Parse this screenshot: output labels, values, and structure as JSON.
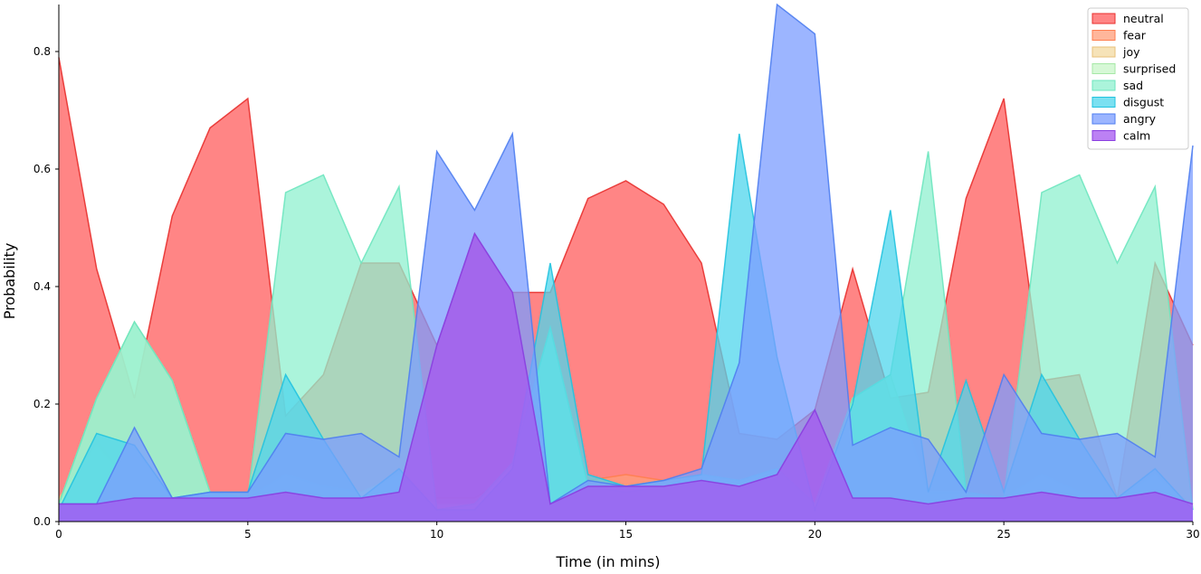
{
  "chart_data": {
    "type": "area",
    "title": "",
    "xlabel": "Time (in mins)",
    "ylabel": "Probability",
    "xlim": [
      0,
      30
    ],
    "ylim": [
      0,
      0.88
    ],
    "xticks": [
      0,
      5,
      10,
      15,
      20,
      25,
      30
    ],
    "yticks": [
      0.0,
      0.2,
      0.4,
      0.6,
      0.8
    ],
    "xtick_labels": [
      "0",
      "5",
      "10",
      "15",
      "20",
      "25",
      "30"
    ],
    "ytick_labels": [
      "0.0",
      "0.2",
      "0.4",
      "0.6",
      "0.8"
    ],
    "grid": false,
    "legend_position": "top-right",
    "x": [
      0,
      1,
      2,
      3,
      4,
      5,
      6,
      7,
      8,
      9,
      10,
      11,
      12,
      13,
      14,
      15,
      16,
      17,
      18,
      19,
      20,
      21,
      22,
      23,
      24,
      25,
      26,
      27,
      28,
      29,
      30
    ],
    "series": [
      {
        "name": "neutral",
        "color": "#ff5c5c",
        "line": "#e8302e",
        "values": [
          0.79,
          0.43,
          0.21,
          0.52,
          0.67,
          0.72,
          0.18,
          0.25,
          0.44,
          0.44,
          0.3,
          0.49,
          0.39,
          0.39,
          0.55,
          0.58,
          0.54,
          0.44,
          0.15,
          0.14,
          0.19,
          0.43,
          0.21,
          0.22,
          0.55,
          0.72,
          0.24,
          0.25,
          0.04,
          0.44,
          0.3
        ]
      },
      {
        "name": "fear",
        "color": "#ff9e7a",
        "line": "#ff7f50",
        "values": [
          0.03,
          0.14,
          0.05,
          0.04,
          0.05,
          0.05,
          0.07,
          0.05,
          0.04,
          0.07,
          0.04,
          0.04,
          0.08,
          0.03,
          0.07,
          0.08,
          0.07,
          0.08,
          0.07,
          0.08,
          0.03,
          0.13,
          0.05,
          0.05,
          0.04,
          0.04,
          0.07,
          0.05,
          0.04,
          0.07,
          0.03
        ]
      },
      {
        "name": "joy",
        "color": "#f3d9a0",
        "line": "#e8c07a",
        "values": [
          0.04,
          0.13,
          0.05,
          0.05,
          0.05,
          0.05,
          0.06,
          0.05,
          0.04,
          0.06,
          0.03,
          0.03,
          0.08,
          0.03,
          0.06,
          0.06,
          0.07,
          0.08,
          0.07,
          0.08,
          0.03,
          0.12,
          0.05,
          0.05,
          0.05,
          0.04,
          0.06,
          0.05,
          0.04,
          0.06,
          0.03
        ]
      },
      {
        "name": "surprised",
        "color": "#c8f5c8",
        "line": "#a6e8a6",
        "values": [
          0.03,
          0.21,
          0.34,
          0.24,
          0.05,
          0.04,
          0.08,
          0.06,
          0.05,
          0.08,
          0.02,
          0.03,
          0.1,
          0.33,
          0.06,
          0.05,
          0.06,
          0.08,
          0.07,
          0.09,
          0.03,
          0.21,
          0.25,
          0.05,
          0.05,
          0.04,
          0.08,
          0.05,
          0.04,
          0.08,
          0.02
        ]
      },
      {
        "name": "sad",
        "color": "#8ff0cf",
        "line": "#6ee6bf",
        "values": [
          0.03,
          0.21,
          0.34,
          0.24,
          0.05,
          0.04,
          0.56,
          0.59,
          0.44,
          0.57,
          0.02,
          0.03,
          0.1,
          0.33,
          0.06,
          0.05,
          0.06,
          0.08,
          0.07,
          0.09,
          0.03,
          0.21,
          0.25,
          0.63,
          0.05,
          0.04,
          0.56,
          0.59,
          0.44,
          0.57,
          0.02
        ]
      },
      {
        "name": "disgust",
        "color": "#4fd6ec",
        "line": "#22c3df",
        "values": [
          0.02,
          0.15,
          0.13,
          0.04,
          0.05,
          0.05,
          0.25,
          0.14,
          0.04,
          0.09,
          0.02,
          0.02,
          0.09,
          0.44,
          0.08,
          0.06,
          0.07,
          0.08,
          0.66,
          0.28,
          0.02,
          0.2,
          0.53,
          0.05,
          0.24,
          0.05,
          0.25,
          0.14,
          0.04,
          0.09,
          0.02
        ]
      },
      {
        "name": "angry",
        "color": "#7b9cff",
        "line": "#4f7ef0",
        "values": [
          0.03,
          0.03,
          0.16,
          0.04,
          0.05,
          0.05,
          0.15,
          0.14,
          0.15,
          0.11,
          0.63,
          0.53,
          0.66,
          0.03,
          0.07,
          0.06,
          0.07,
          0.09,
          0.27,
          0.88,
          0.83,
          0.13,
          0.16,
          0.14,
          0.05,
          0.25,
          0.15,
          0.14,
          0.15,
          0.11,
          0.64
        ]
      },
      {
        "name": "calm",
        "color": "#a557f0",
        "line": "#8a3ee0",
        "values": [
          0.03,
          0.03,
          0.04,
          0.04,
          0.04,
          0.04,
          0.05,
          0.04,
          0.04,
          0.05,
          0.3,
          0.49,
          0.39,
          0.03,
          0.06,
          0.06,
          0.06,
          0.07,
          0.06,
          0.08,
          0.19,
          0.04,
          0.04,
          0.03,
          0.04,
          0.04,
          0.05,
          0.04,
          0.04,
          0.05,
          0.03
        ]
      }
    ]
  }
}
